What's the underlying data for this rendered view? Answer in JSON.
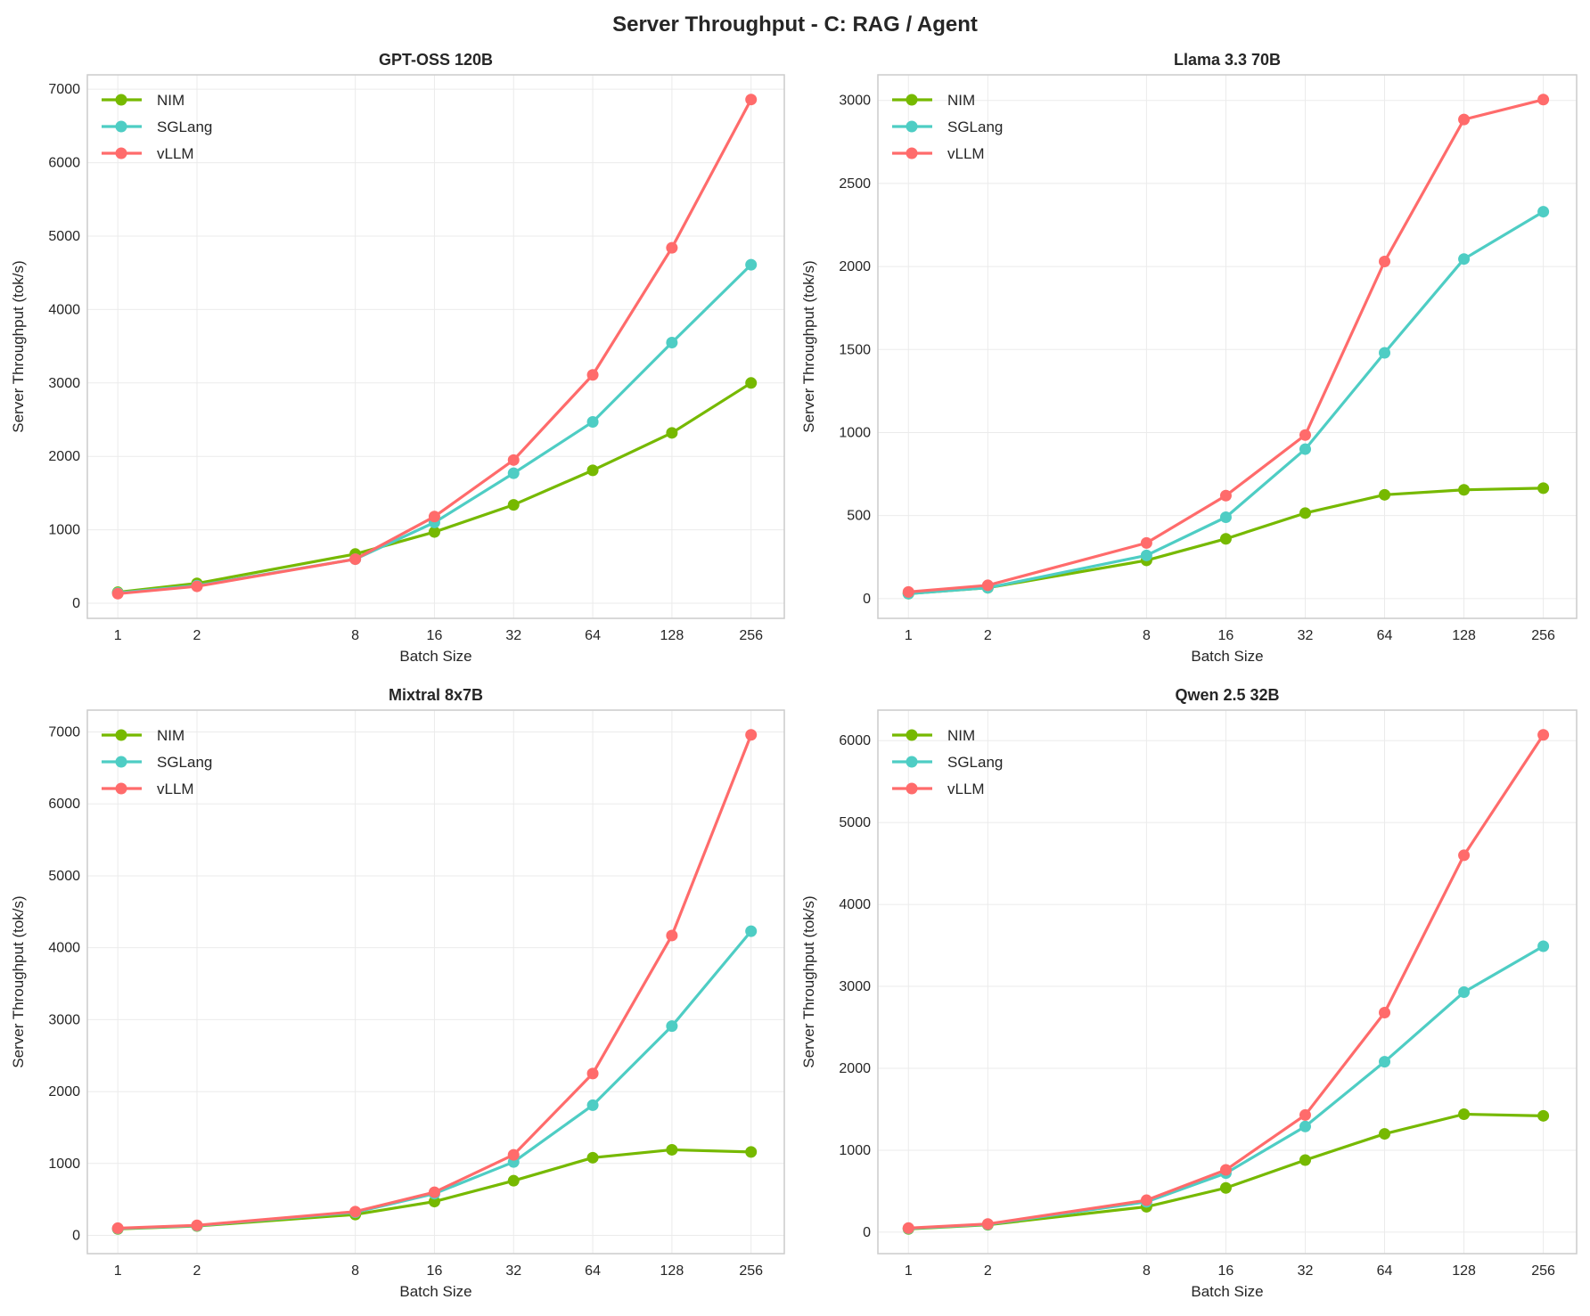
{
  "chart_data": {
    "title": "Server Throughput - C: RAG / Agent",
    "type": "line",
    "x_scale": "log2",
    "grid": true,
    "legend_placement": "top-left",
    "colors": {
      "NIM": "#76b900",
      "SGLang": "#4ecdc4",
      "vLLM": "#ff6b6b"
    },
    "panels": [
      {
        "title": "GPT-OSS 120B",
        "xlabel": "Batch Size",
        "ylabel": "Server Throughput (tok/s)",
        "x": [
          1,
          2,
          8,
          16,
          32,
          64,
          128,
          256
        ],
        "xticks": [
          "1",
          "2",
          "8",
          "16",
          "32",
          "64",
          "128",
          "256"
        ],
        "ylim": [
          -206,
          7196
        ],
        "yticks": [
          0,
          1000,
          2000,
          3000,
          4000,
          5000,
          6000,
          7000
        ],
        "series": [
          {
            "name": "NIM",
            "values": [
              150,
              270,
              670,
              970,
              1340,
              1810,
              2320,
              3000
            ]
          },
          {
            "name": "SGLang",
            "values": [
              140,
              240,
              600,
              1100,
              1770,
              2470,
              3550,
              4610
            ]
          },
          {
            "name": "vLLM",
            "values": [
              130,
              230,
              600,
              1180,
              1950,
              3110,
              4840,
              6860
            ]
          }
        ]
      },
      {
        "title": "Llama 3.3 70B",
        "xlabel": "Batch Size",
        "ylabel": "Server Throughput (tok/s)",
        "x": [
          1,
          2,
          8,
          16,
          32,
          64,
          128,
          256
        ],
        "xticks": [
          "1",
          "2",
          "8",
          "16",
          "32",
          "64",
          "128",
          "256"
        ],
        "ylim": [
          -119,
          3154
        ],
        "yticks": [
          0,
          500,
          1000,
          1500,
          2000,
          2500,
          3000
        ],
        "series": [
          {
            "name": "NIM",
            "values": [
              30,
              65,
              230,
              360,
              515,
              625,
              655,
              665
            ]
          },
          {
            "name": "SGLang",
            "values": [
              30,
              65,
              260,
              490,
              900,
              1480,
              2045,
              2330
            ]
          },
          {
            "name": "vLLM",
            "values": [
              40,
              80,
              335,
              620,
              985,
              2030,
              2885,
              3005
            ]
          }
        ]
      },
      {
        "title": "Mixtral 8x7B",
        "xlabel": "Batch Size",
        "ylabel": "Server Throughput (tok/s)",
        "x": [
          1,
          2,
          8,
          16,
          32,
          64,
          128,
          256
        ],
        "xticks": [
          "1",
          "2",
          "8",
          "16",
          "32",
          "64",
          "128",
          "256"
        ],
        "ylim": [
          -254,
          7304
        ],
        "yticks": [
          0,
          1000,
          2000,
          3000,
          4000,
          5000,
          6000,
          7000
        ],
        "series": [
          {
            "name": "NIM",
            "values": [
              90,
              130,
              290,
              470,
              760,
              1080,
              1190,
              1160
            ]
          },
          {
            "name": "SGLang",
            "values": [
              95,
              135,
              320,
              580,
              1020,
              1810,
              2910,
              4230
            ]
          },
          {
            "name": "vLLM",
            "values": [
              100,
              140,
              330,
              600,
              1120,
              2250,
              4170,
              6960
            ]
          }
        ]
      },
      {
        "title": "Qwen 2.5 32B",
        "xlabel": "Batch Size",
        "ylabel": "Server Throughput (tok/s)",
        "x": [
          1,
          2,
          8,
          16,
          32,
          64,
          128,
          256
        ],
        "xticks": [
          "1",
          "2",
          "8",
          "16",
          "32",
          "64",
          "128",
          "256"
        ],
        "ylim": [
          -262,
          6372
        ],
        "yticks": [
          0,
          1000,
          2000,
          3000,
          4000,
          5000,
          6000
        ],
        "series": [
          {
            "name": "NIM",
            "values": [
              40,
              90,
              310,
              540,
              880,
              1200,
              1440,
              1420
            ]
          },
          {
            "name": "SGLang",
            "values": [
              45,
              95,
              370,
              720,
              1290,
              2080,
              2930,
              3490
            ]
          },
          {
            "name": "vLLM",
            "values": [
              50,
              100,
              390,
              760,
              1430,
              2680,
              4600,
              6070
            ]
          }
        ]
      }
    ]
  }
}
